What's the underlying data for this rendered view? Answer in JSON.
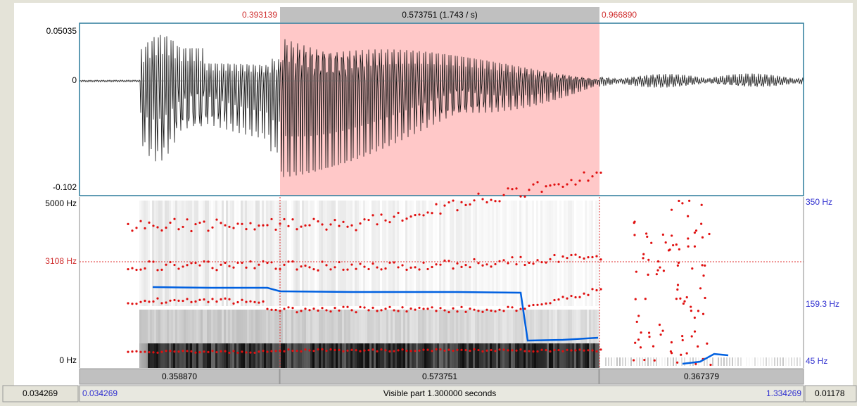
{
  "top": {
    "selection_start": "0.393139",
    "selection_duration": "0.573751 (1.743 / s)",
    "selection_end": "0.966890"
  },
  "waveform": {
    "max_label": "0.05035",
    "zero_label": "0",
    "min_label": "-0.102"
  },
  "spectrogram": {
    "top_label": "5000 Hz",
    "cursor_label": "3108 Hz",
    "bottom_label": "0 Hz"
  },
  "pitch": {
    "top_label": "350 Hz",
    "mid_label": "159.3 Hz",
    "bottom_label": "45 Hz"
  },
  "segments": [
    "0.358870",
    "0.573751",
    "0.367379"
  ],
  "status": {
    "left_total": "0.034269",
    "visible_start": "0.034269",
    "visible_text": "Visible part 1.300000 seconds",
    "visible_end": "1.334269",
    "right_total": "0.01178"
  }
}
